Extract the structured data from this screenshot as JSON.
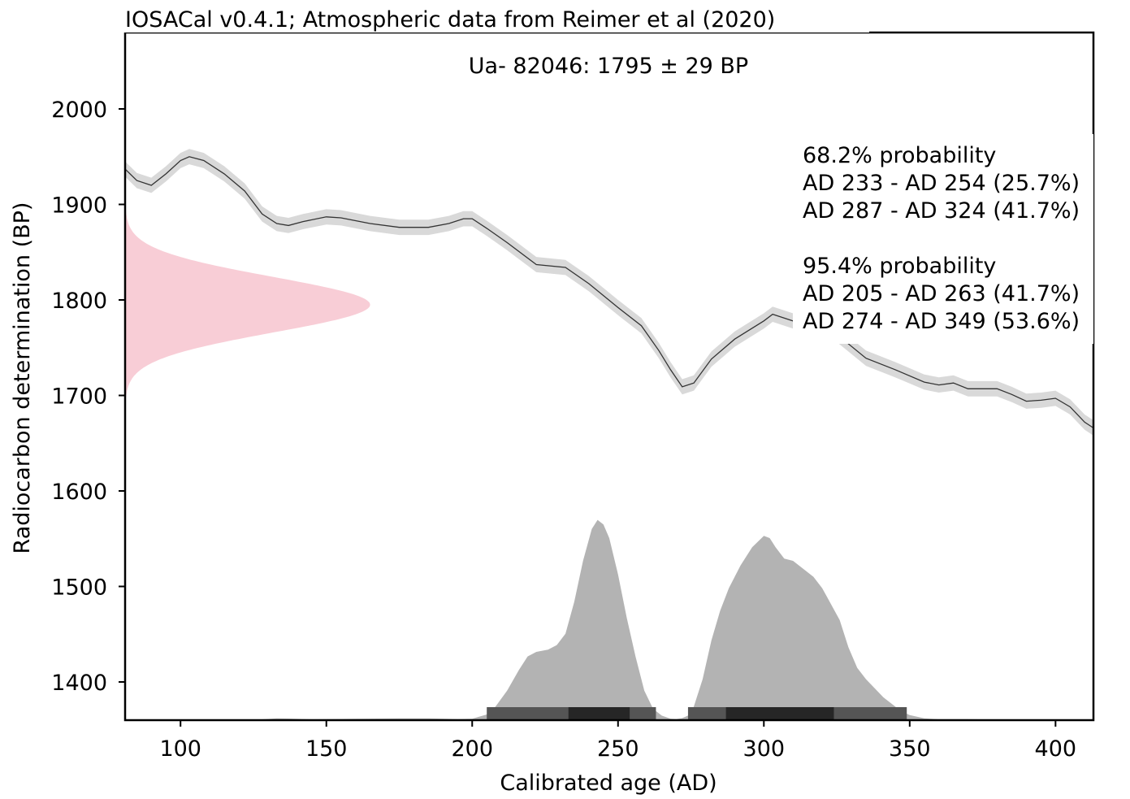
{
  "chart_data": {
    "type": "area",
    "title": "IOSACal v0.4.1; Atmospheric data from Reimer et al (2020)",
    "subtitle": "Ua- 82046: 1795 ± 29 BP",
    "xlabel": "Calibrated age (AD)",
    "ylabel": "Radiocarbon determination (BP)",
    "xlim": [
      81,
      413
    ],
    "ylim": [
      1360,
      2080
    ],
    "x_ticks": [
      100,
      150,
      200,
      250,
      300,
      350,
      400
    ],
    "y_ticks": [
      1400,
      1500,
      1600,
      1700,
      1800,
      1900,
      2000
    ],
    "grid": false,
    "colors": {
      "calibration_curve": "#333333",
      "calibration_band": "#d9d9d9",
      "radiocarbon_distribution": "#f8cdd6",
      "calibrated_distribution": "#b3b3b3",
      "range_95": "#555555",
      "range_68": "#262626"
    },
    "annotation_lines": [
      "68.2% probability",
      "AD 233 - AD 254 (25.7%)",
      "AD 287 - AD 324 (41.7%)",
      "",
      "95.4% probability",
      "AD 205 - AD 263 (41.7%)",
      "AD 274 - AD 349 (53.6%)"
    ],
    "radiocarbon_date": {
      "mean": 1795,
      "sigma": 29
    },
    "ranges_95": [
      [
        205,
        263
      ],
      [
        274,
        349
      ]
    ],
    "ranges_68": [
      [
        233,
        254
      ],
      [
        287,
        324
      ]
    ],
    "calibration_curve": {
      "name": "",
      "x": [
        81,
        85,
        90,
        95,
        100,
        103,
        108,
        115,
        122,
        128,
        133,
        137,
        142,
        150,
        155,
        165,
        175,
        185,
        192,
        197,
        200,
        205,
        212,
        222,
        232,
        240,
        250,
        258,
        264,
        268,
        272,
        276,
        282,
        290,
        300,
        303,
        308,
        315,
        325,
        335,
        345,
        355,
        360,
        365,
        370,
        380,
        385,
        390,
        395,
        400,
        405,
        410,
        413
      ],
      "y": [
        1937,
        1925,
        1920,
        1932,
        1946,
        1950,
        1946,
        1932,
        1914,
        1890,
        1880,
        1878,
        1882,
        1887,
        1886,
        1880,
        1876,
        1876,
        1880,
        1885,
        1885,
        1875,
        1860,
        1837,
        1834,
        1817,
        1792,
        1773,
        1747,
        1727,
        1709,
        1713,
        1738,
        1759,
        1778,
        1785,
        1780,
        1773,
        1764,
        1739,
        1727,
        1714,
        1711,
        1713,
        1707,
        1707,
        1701,
        1694,
        1695,
        1697,
        1688,
        1672,
        1666
      ],
      "band_halfwidth_bp": 8
    },
    "radiocarbon_distribution": {
      "name": "",
      "description_values": "normal density on the y-axis, mean 1795 BP, sigma 29 BP, peak reaching about AD 165 on the x-axis"
    },
    "calibrated_distribution": {
      "name": "",
      "x": [
        81,
        120,
        127,
        133,
        137,
        145,
        160,
        175,
        185,
        195,
        200,
        205,
        208,
        212,
        216,
        219,
        222,
        226,
        229,
        232,
        235,
        238,
        241,
        243,
        245,
        247,
        250,
        253,
        256,
        259,
        262,
        265,
        268,
        270,
        272,
        274,
        276,
        279,
        282,
        285,
        288,
        292,
        296,
        300,
        302,
        304,
        307,
        310,
        314,
        317,
        320,
        323,
        326,
        329,
        332,
        335,
        338,
        341,
        344,
        347,
        350,
        355,
        360,
        370,
        380,
        390,
        413
      ],
      "y": [
        0,
        0,
        0.3,
        0.8,
        0.7,
        0.4,
        0.6,
        0.8,
        0.8,
        0.5,
        0.6,
        2.5,
        6,
        13,
        22,
        28,
        30,
        31,
        33,
        38,
        52,
        70,
        84,
        88,
        86,
        80,
        64,
        45,
        28,
        13,
        5,
        2,
        0.6,
        0.5,
        0.9,
        2,
        6,
        18,
        35,
        48,
        58,
        68,
        76,
        81,
        80,
        76,
        71,
        70,
        66,
        63,
        58,
        51,
        44,
        32,
        23,
        18,
        14,
        10,
        7,
        4,
        2.2,
        0.8,
        0.4,
        0.4,
        0.3,
        0.1,
        0
      ],
      "units": "relative probability (percent of peak height)"
    }
  }
}
